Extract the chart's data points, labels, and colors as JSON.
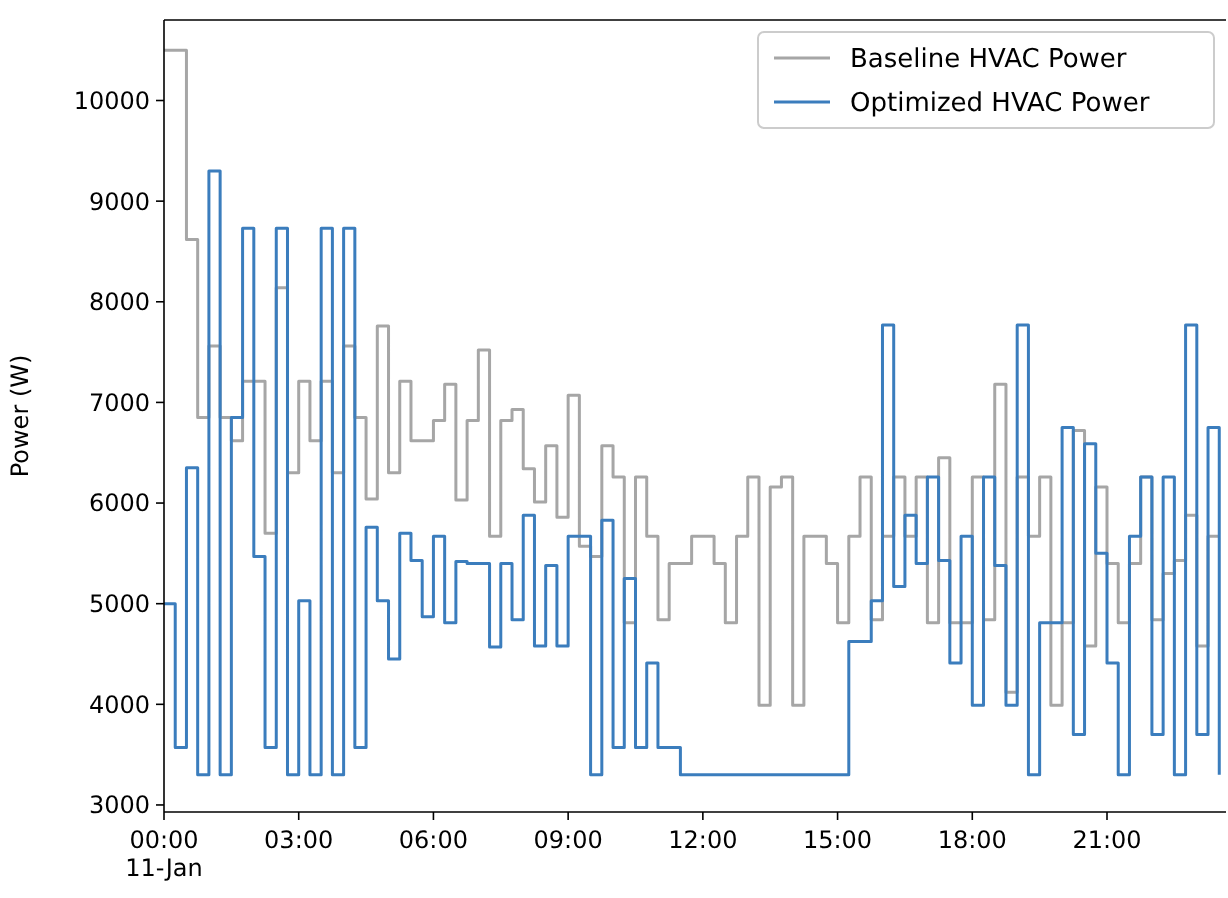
{
  "chart_data": {
    "type": "step",
    "ylabel": "Power (W)",
    "x": [
      0,
      0.25,
      0.5,
      0.75,
      1,
      1.25,
      1.5,
      1.75,
      2,
      2.25,
      2.5,
      2.75,
      3,
      3.25,
      3.5,
      3.75,
      4,
      4.25,
      4.5,
      4.75,
      5,
      5.25,
      5.5,
      5.75,
      6,
      6.25,
      6.5,
      6.75,
      7,
      7.25,
      7.5,
      7.75,
      8,
      8.25,
      8.5,
      8.75,
      9,
      9.25,
      9.5,
      9.75,
      10,
      10.25,
      10.5,
      10.75,
      11,
      11.25,
      11.5,
      11.75,
      12,
      12.25,
      12.5,
      12.75,
      13,
      13.25,
      13.5,
      13.75,
      14,
      14.25,
      14.5,
      14.75,
      15,
      15.25,
      15.5,
      15.75,
      16,
      16.25,
      16.5,
      16.75,
      17,
      17.25,
      17.5,
      17.75,
      18,
      18.25,
      18.5,
      18.75,
      19,
      19.25,
      19.5,
      19.75,
      20,
      20.25,
      20.5,
      20.75,
      21,
      21.25,
      21.5,
      21.75,
      22,
      22.25,
      22.5,
      22.75,
      23,
      23.25,
      23.5
    ],
    "series": [
      {
        "name": "Baseline HVAC Power",
        "color": "#a6a6a6",
        "values": [
          10500,
          10500,
          8620,
          6850,
          7560,
          6850,
          6620,
          7210,
          7210,
          5700,
          8140,
          6300,
          7210,
          6620,
          7210,
          6300,
          7560,
          6850,
          6040,
          7760,
          6300,
          7210,
          6620,
          6620,
          6820,
          7180,
          6030,
          6820,
          7520,
          5670,
          6820,
          6930,
          6340,
          6010,
          6570,
          5860,
          7070,
          5570,
          5470,
          6570,
          6260,
          4810,
          6260,
          5670,
          4840,
          5400,
          5400,
          5670,
          5670,
          5400,
          4810,
          5670,
          6260,
          3990,
          6160,
          6260,
          3990,
          5670,
          5670,
          5400,
          4810,
          5670,
          6260,
          4840,
          5670,
          6260,
          5670,
          6260,
          4810,
          6450,
          4810,
          4810,
          6260,
          4840,
          7180,
          4120,
          6260,
          5670,
          6260,
          3990,
          4810,
          6720,
          4580,
          6160,
          5400,
          4810,
          5400,
          6260,
          4840,
          5300,
          5430,
          5880,
          4580,
          5670,
          5670
        ]
      },
      {
        "name": "Optimized HVAC Power",
        "color": "#3b7dbd",
        "values": [
          5000,
          3570,
          6350,
          3300,
          9300,
          3300,
          6850,
          8730,
          5470,
          3570,
          8730,
          3300,
          5030,
          3300,
          8730,
          3300,
          8730,
          3570,
          5760,
          5030,
          4450,
          5700,
          5430,
          4870,
          5670,
          4810,
          5420,
          5400,
          5400,
          4570,
          5400,
          4840,
          5880,
          4580,
          5380,
          4580,
          5670,
          5670,
          3300,
          5830,
          3570,
          5250,
          3570,
          4410,
          3570,
          3570,
          3300,
          3300,
          3300,
          3300,
          3300,
          3300,
          3300,
          3300,
          3300,
          3300,
          3300,
          3300,
          3300,
          3300,
          3300,
          4625,
          4625,
          5030,
          7770,
          5170,
          5880,
          5400,
          6260,
          5430,
          4410,
          5670,
          3990,
          6260,
          5380,
          3990,
          7770,
          3300,
          4810,
          4810,
          6750,
          3700,
          6590,
          5500,
          4410,
          3300,
          5670,
          6260,
          3700,
          6260,
          3300,
          7770,
          3700,
          6750,
          3300
        ]
      }
    ],
    "xlim": [
      0,
      23.65
    ],
    "xticks": [
      {
        "value": 0,
        "label": "00:00\n11-Jan"
      },
      {
        "value": 3,
        "label": "03:00"
      },
      {
        "value": 6,
        "label": "06:00"
      },
      {
        "value": 9,
        "label": "09:00"
      },
      {
        "value": 12,
        "label": "12:00"
      },
      {
        "value": 15,
        "label": "15:00"
      },
      {
        "value": 18,
        "label": "18:00"
      },
      {
        "value": 21,
        "label": "21:00"
      }
    ],
    "ylim": [
      2930,
      10800
    ],
    "yticks": [
      3000,
      4000,
      5000,
      6000,
      7000,
      8000,
      9000,
      10000
    ],
    "legend": "top right",
    "grid": false
  }
}
